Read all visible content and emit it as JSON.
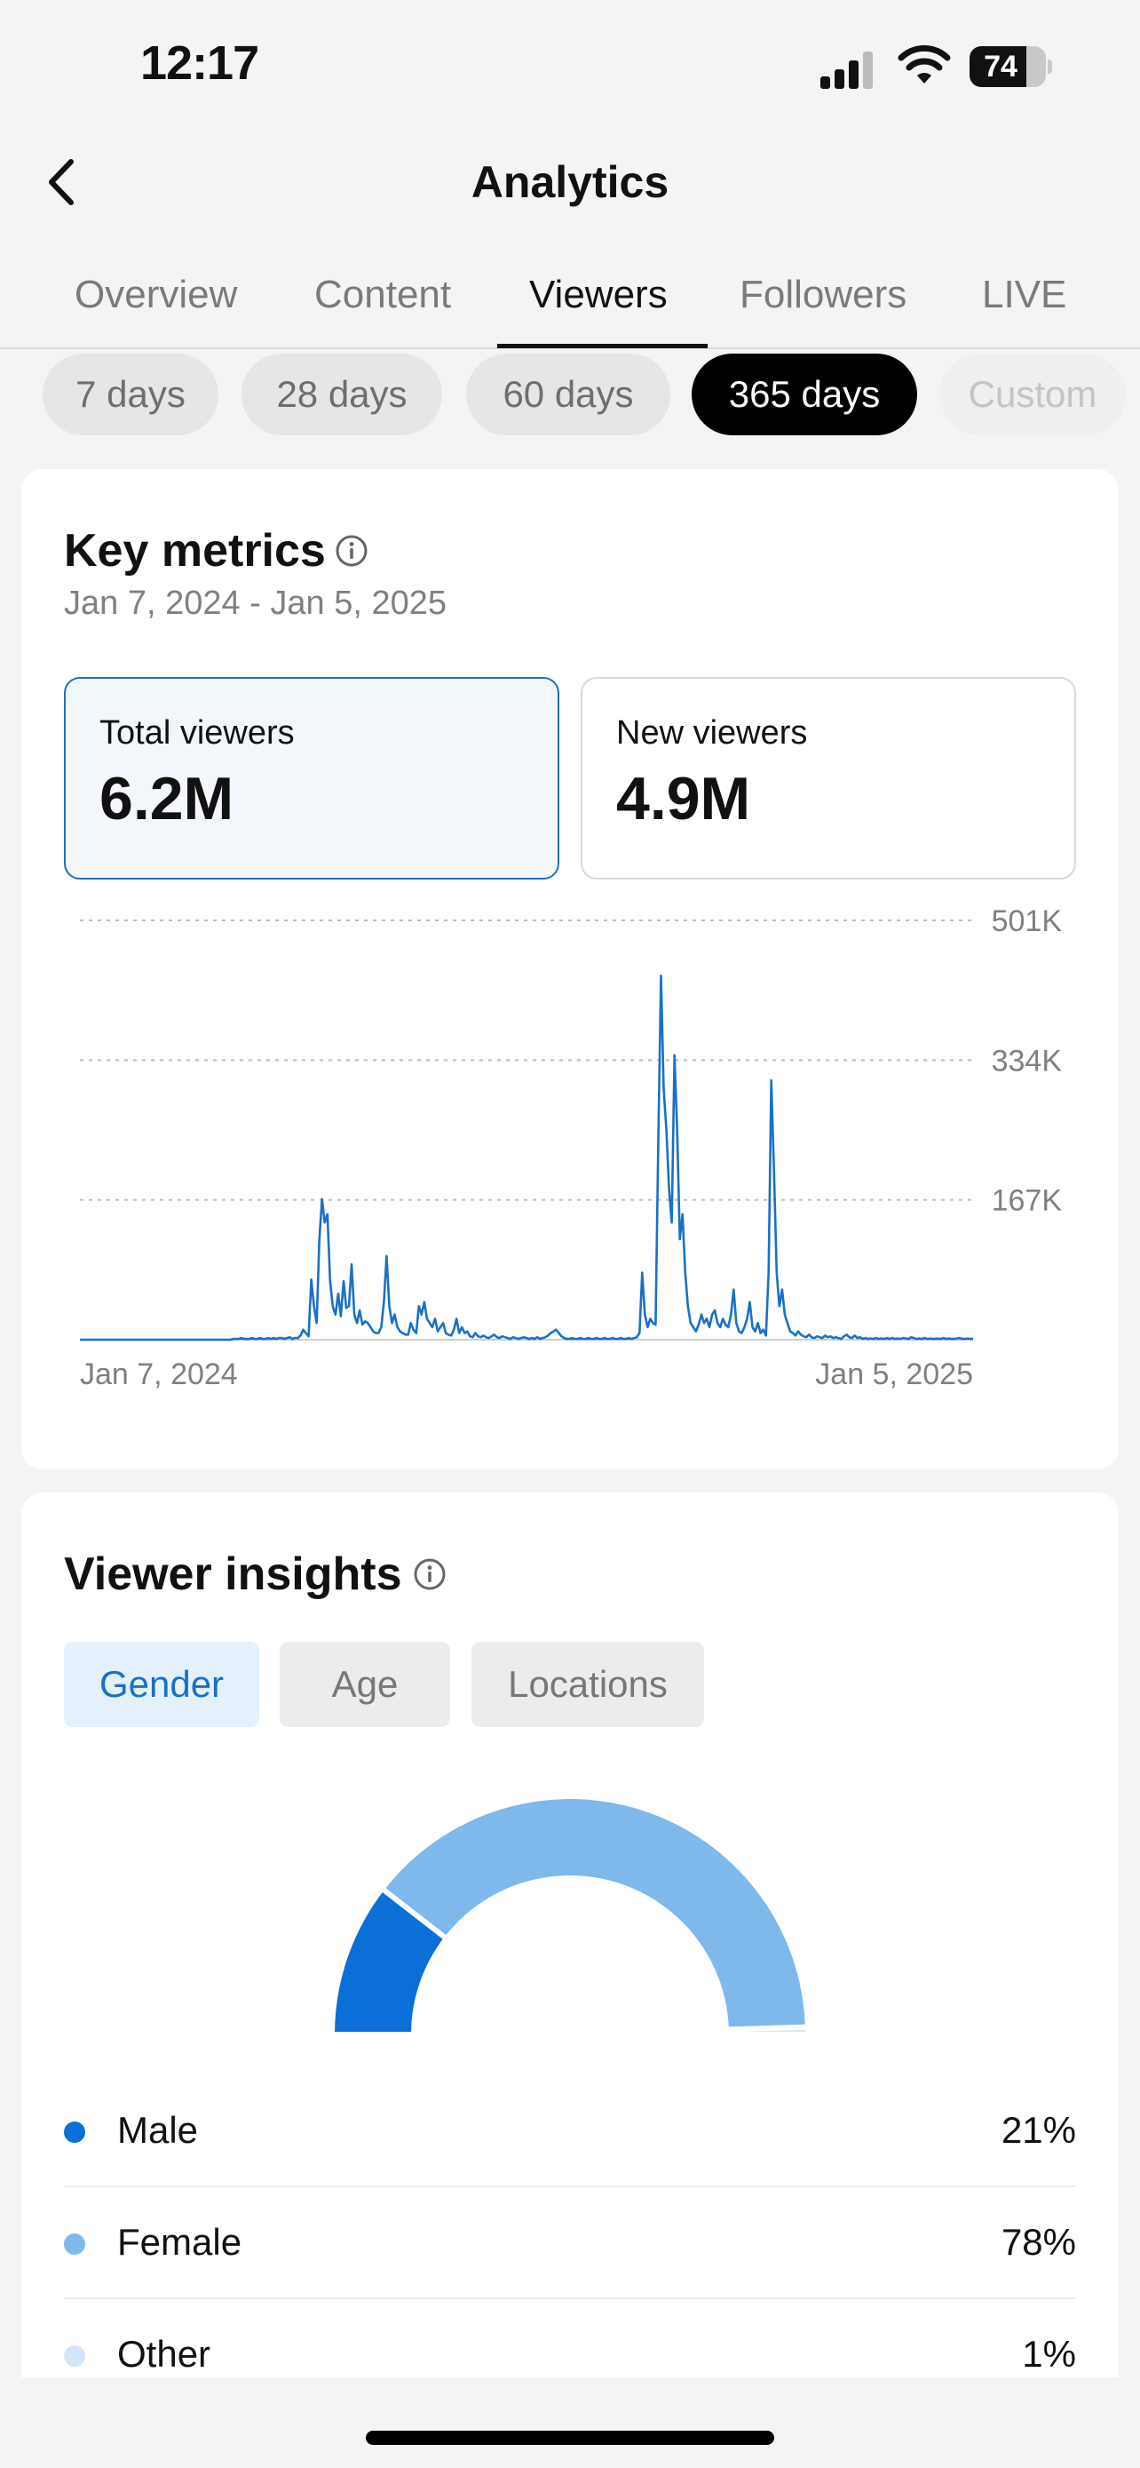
{
  "status": {
    "time": "12:17",
    "battery": "74",
    "battery_level": 0.74
  },
  "header": {
    "title": "Analytics"
  },
  "tabs": [
    "Overview",
    "Content",
    "Viewers",
    "Followers",
    "LIVE"
  ],
  "active_tab": "Viewers",
  "ranges": [
    "7 days",
    "28 days",
    "60 days",
    "365 days",
    "Custom"
  ],
  "active_range": "365 days",
  "key_metrics": {
    "title": "Key metrics",
    "date_range": "Jan 7, 2024 - Jan 5, 2025",
    "total_viewers_label": "Total viewers",
    "total_viewers_value": "6.2M",
    "new_viewers_label": "New viewers",
    "new_viewers_value": "4.9M"
  },
  "chart_data": {
    "type": "line",
    "title": "",
    "xlabel": "",
    "ylabel": "",
    "x_start_label": "Jan 7, 2024",
    "x_end_label": "Jan 5, 2025",
    "y_ticks": [
      "501K",
      "334K",
      "167K"
    ],
    "y_tick_values": [
      501000,
      334000,
      167000
    ],
    "ylim": [
      0,
      501000
    ],
    "grid": true,
    "accent": "#1a70c8",
    "series": [
      {
        "values": [
          0,
          0,
          0,
          0,
          0,
          0,
          0,
          0,
          0,
          0,
          0,
          0,
          0,
          0,
          0,
          0,
          0,
          0,
          0,
          0,
          0,
          0,
          0,
          0,
          0,
          0,
          0,
          0,
          0,
          0,
          0,
          0,
          0,
          0,
          0,
          0,
          0,
          0,
          0,
          0,
          0,
          0,
          0,
          0,
          0,
          0,
          0,
          0,
          0,
          0,
          0,
          0,
          0,
          0,
          0,
          0,
          0,
          1000,
          1000,
          1000,
          2000,
          1000,
          1000,
          1000,
          2000,
          1000,
          1000,
          2000,
          1000,
          1000,
          2000,
          1000,
          2000,
          1000,
          2000,
          2000,
          1000,
          2000,
          3000,
          1000,
          2000,
          2000,
          5000,
          12000,
          8000,
          4000,
          72000,
          40000,
          20000,
          120000,
          168000,
          140000,
          150000,
          70000,
          40000,
          30000,
          55000,
          28000,
          70000,
          38000,
          40000,
          90000,
          30000,
          20000,
          35000,
          18000,
          22000,
          20000,
          15000,
          10000,
          8000,
          8000,
          15000,
          45000,
          100000,
          40000,
          20000,
          30000,
          15000,
          10000,
          8000,
          6000,
          6000,
          20000,
          12000,
          8000,
          40000,
          30000,
          45000,
          25000,
          20000,
          15000,
          25000,
          10000,
          15000,
          20000,
          8000,
          6000,
          5000,
          12000,
          25000,
          8000,
          15000,
          8000,
          10000,
          4000,
          3000,
          8000,
          4000,
          3000,
          5000,
          3000,
          2000,
          4000,
          6000,
          3000,
          2000,
          4000,
          3000,
          2000,
          1000,
          3000,
          2000,
          1000,
          2000,
          3000,
          2000,
          1000,
          2000,
          1000,
          3000,
          1000,
          2000,
          3000,
          5000,
          8000,
          10000,
          12000,
          8000,
          4000,
          2000,
          1000,
          1000,
          2000,
          1000,
          1000,
          2000,
          1000,
          1000,
          2000,
          1000,
          1000,
          2000,
          1000,
          1000,
          2000,
          1000,
          1000,
          2000,
          1000,
          1000,
          2000,
          1000,
          1000,
          2000,
          1000,
          2000,
          3000,
          8000,
          80000,
          30000,
          15000,
          25000,
          20000,
          18000,
          240000,
          435000,
          300000,
          250000,
          180000,
          140000,
          340000,
          250000,
          120000,
          150000,
          80000,
          40000,
          20000,
          15000,
          10000,
          18000,
          30000,
          20000,
          25000,
          15000,
          30000,
          35000,
          20000,
          15000,
          25000,
          18000,
          15000,
          30000,
          60000,
          20000,
          10000,
          8000,
          15000,
          25000,
          45000,
          15000,
          10000,
          20000,
          8000,
          12000,
          5000,
          80000,
          310000,
          200000,
          80000,
          40000,
          60000,
          30000,
          20000,
          10000,
          8000,
          5000,
          10000,
          6000,
          4000,
          3000,
          6000,
          3000,
          2000,
          4000,
          3000,
          2000,
          5000,
          3000,
          4000,
          2000,
          3000,
          2000,
          1000,
          4000,
          6000,
          3000,
          2000,
          5000,
          2000,
          3000,
          1000,
          2000,
          1000,
          1500,
          1000,
          2000,
          1000,
          1500,
          1000,
          2000,
          1000,
          2000,
          1000,
          1500,
          1000,
          2000,
          1500,
          1000,
          3000,
          2000,
          1000,
          1500,
          1000,
          2000,
          1000,
          1500,
          1000,
          1000,
          1500,
          1000,
          2000,
          1000,
          1500,
          1000,
          1000,
          1500,
          2000,
          1000,
          1000,
          1500,
          1000,
          1000
        ]
      }
    ]
  },
  "insights": {
    "title": "Viewer insights",
    "segments": [
      "Gender",
      "Age",
      "Locations"
    ],
    "active_segment": "Gender",
    "gender": [
      {
        "label": "Male",
        "value": "21%",
        "share": 21,
        "color": "#0a6fd6"
      },
      {
        "label": "Female",
        "value": "78%",
        "share": 78,
        "color": "#7fb8ea"
      },
      {
        "label": "Other",
        "value": "1%",
        "share": 1,
        "color": "#d3e6f8"
      }
    ]
  }
}
